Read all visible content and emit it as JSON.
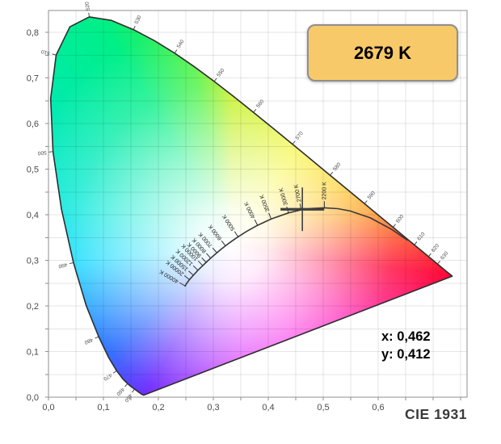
{
  "title": "CIE 1931",
  "badge": {
    "label": "2679 K"
  },
  "readout": {
    "x": "x: 0,462",
    "y": "y: 0,412"
  },
  "colors": {
    "badge_bg": "#f8c968",
    "badge_border": "#8f8f8f",
    "plot_border": "#8f8f8f",
    "grid": "rgba(0,0,0,0.10)",
    "axis_text": "#4a4a4a",
    "locus_outline": "#2e2e2e",
    "planckian_stroke": "#383838",
    "crosshair": "#3f3f3f"
  },
  "chart_data": {
    "type": "line",
    "subtype": "cie-1931-chromaticity-diagram",
    "title": "CIE 1931",
    "xlabel": "x",
    "ylabel": "y",
    "x_range": [
      0,
      0.762
    ],
    "y_range": [
      0,
      0.848
    ],
    "grid_step": 0.05,
    "grid": true,
    "x_ticks": [
      {
        "v": 0.0,
        "label": "0,0"
      },
      {
        "v": 0.1,
        "label": "0,1"
      },
      {
        "v": 0.2,
        "label": "0,2"
      },
      {
        "v": 0.3,
        "label": "0,3"
      },
      {
        "v": 0.4,
        "label": "0,4"
      },
      {
        "v": 0.5,
        "label": "0,5"
      },
      {
        "v": 0.6,
        "label": "0,6"
      }
    ],
    "y_ticks": [
      {
        "v": 0.0,
        "label": "0,0"
      },
      {
        "v": 0.1,
        "label": "0,1"
      },
      {
        "v": 0.2,
        "label": "0,2"
      },
      {
        "v": 0.3,
        "label": "0,3"
      },
      {
        "v": 0.4,
        "label": "0,4"
      },
      {
        "v": 0.5,
        "label": "0,5"
      },
      {
        "v": 0.6,
        "label": "0,6"
      },
      {
        "v": 0.7,
        "label": "0,7"
      },
      {
        "v": 0.8,
        "label": "0,8"
      }
    ],
    "current_point": {
      "x": 0.462,
      "y": 0.412,
      "cct_label": "2679 K"
    },
    "white_point": {
      "x": 0.3333,
      "y": 0.3333
    },
    "spectral_locus": [
      [
        380,
        0.1741,
        0.005
      ],
      [
        410,
        0.1726,
        0.0048
      ],
      [
        430,
        0.1689,
        0.0069
      ],
      [
        440,
        0.1644,
        0.0109
      ],
      [
        450,
        0.1566,
        0.0177
      ],
      [
        455,
        0.151,
        0.0227
      ],
      [
        460,
        0.144,
        0.0297
      ],
      [
        465,
        0.1355,
        0.0399
      ],
      [
        470,
        0.1241,
        0.0578
      ],
      [
        475,
        0.1096,
        0.0868
      ],
      [
        480,
        0.0913,
        0.1327
      ],
      [
        485,
        0.0687,
        0.2007
      ],
      [
        490,
        0.0454,
        0.295
      ],
      [
        495,
        0.0235,
        0.4127
      ],
      [
        500,
        0.0082,
        0.5384
      ],
      [
        505,
        0.0039,
        0.6548
      ],
      [
        510,
        0.0139,
        0.7502
      ],
      [
        515,
        0.0389,
        0.812
      ],
      [
        520,
        0.0743,
        0.8338
      ],
      [
        525,
        0.1142,
        0.8262
      ],
      [
        530,
        0.1547,
        0.8059
      ],
      [
        535,
        0.1929,
        0.7816
      ],
      [
        540,
        0.2296,
        0.7543
      ],
      [
        545,
        0.2658,
        0.7243
      ],
      [
        550,
        0.3016,
        0.6923
      ],
      [
        555,
        0.3373,
        0.6589
      ],
      [
        560,
        0.3731,
        0.6245
      ],
      [
        565,
        0.4087,
        0.5896
      ],
      [
        570,
        0.4441,
        0.5547
      ],
      [
        575,
        0.4788,
        0.5202
      ],
      [
        580,
        0.5125,
        0.4866
      ],
      [
        585,
        0.5448,
        0.4544
      ],
      [
        590,
        0.5752,
        0.4242
      ],
      [
        595,
        0.6029,
        0.3965
      ],
      [
        600,
        0.627,
        0.3725
      ],
      [
        605,
        0.6482,
        0.3514
      ],
      [
        610,
        0.6658,
        0.334
      ],
      [
        615,
        0.6801,
        0.3197
      ],
      [
        620,
        0.6915,
        0.3083
      ],
      [
        625,
        0.7006,
        0.2993
      ],
      [
        630,
        0.7079,
        0.292
      ],
      [
        635,
        0.714,
        0.2859
      ],
      [
        640,
        0.719,
        0.2809
      ],
      [
        650,
        0.726,
        0.274
      ],
      [
        660,
        0.73,
        0.27
      ],
      [
        680,
        0.7334,
        0.2666
      ],
      [
        700,
        0.7347,
        0.2653
      ]
    ],
    "wavelength_labels": [
      "450",
      "460",
      "470",
      "480",
      "490",
      "500",
      "510",
      "520",
      "530",
      "540",
      "550",
      "560",
      "570",
      "580",
      "590",
      "600",
      "610",
      "620",
      "630"
    ],
    "planckian_locus": [
      [
        1000,
        0.6528,
        0.3444
      ],
      [
        1200,
        0.625,
        0.3676
      ],
      [
        1500,
        0.5857,
        0.3931
      ],
      [
        1800,
        0.5493,
        0.4082
      ],
      [
        2000,
        0.5267,
        0.4133
      ],
      [
        2200,
        0.502,
        0.4152
      ],
      [
        2500,
        0.477,
        0.4137
      ],
      [
        2700,
        0.4599,
        0.4106
      ],
      [
        3000,
        0.4369,
        0.4041
      ],
      [
        3500,
        0.4053,
        0.3907
      ],
      [
        4000,
        0.3805,
        0.3768
      ],
      [
        4500,
        0.3608,
        0.3636
      ],
      [
        5000,
        0.3451,
        0.3516
      ],
      [
        5500,
        0.3324,
        0.341
      ],
      [
        6000,
        0.3221,
        0.3318
      ],
      [
        6500,
        0.3135,
        0.3237
      ],
      [
        7000,
        0.3064,
        0.3166
      ],
      [
        8000,
        0.2952,
        0.3048
      ],
      [
        9000,
        0.2869,
        0.2956
      ],
      [
        10000,
        0.2807,
        0.2884
      ],
      [
        12000,
        0.2719,
        0.2782
      ],
      [
        15000,
        0.2637,
        0.2673
      ],
      [
        20000,
        0.2565,
        0.2577
      ],
      [
        30000,
        0.2511,
        0.2486
      ],
      [
        40000,
        0.2487,
        0.2438
      ]
    ],
    "temperature_labels": [
      "2200 K",
      "2700 K",
      "3000 K",
      "3500 K",
      "4000 K",
      "5000 K",
      "6000 K",
      "7000 K",
      "8000 K",
      "9000 K",
      "10000 K",
      "12000 K",
      "15000 K",
      "20000 K",
      "40000 K"
    ],
    "gradient": {
      "conic_stops": [
        {
          "angle": 0,
          "color": "#b9ee00"
        },
        {
          "angle": 35,
          "color": "#f4f400"
        },
        {
          "angle": 60,
          "color": "#ffc800"
        },
        {
          "angle": 75,
          "color": "#ff9100"
        },
        {
          "angle": 98,
          "color": "#ff0033"
        },
        {
          "angle": 120,
          "color": "#ff00a0"
        },
        {
          "angle": 145,
          "color": "#ff00e1"
        },
        {
          "angle": 175,
          "color": "#d400ff"
        },
        {
          "angle": 210,
          "color": "#5000ff"
        },
        {
          "angle": 228,
          "color": "#0048ff"
        },
        {
          "angle": 250,
          "color": "#00a0ff"
        },
        {
          "angle": 264,
          "color": "#00d9ff"
        },
        {
          "angle": 285,
          "color": "#00e8d8"
        },
        {
          "angle": 305,
          "color": "#00eab4"
        },
        {
          "angle": 330,
          "color": "#00ef86"
        },
        {
          "angle": 348,
          "color": "#4af23c"
        },
        {
          "angle": 360,
          "color": "#b9ee00"
        }
      ]
    }
  }
}
